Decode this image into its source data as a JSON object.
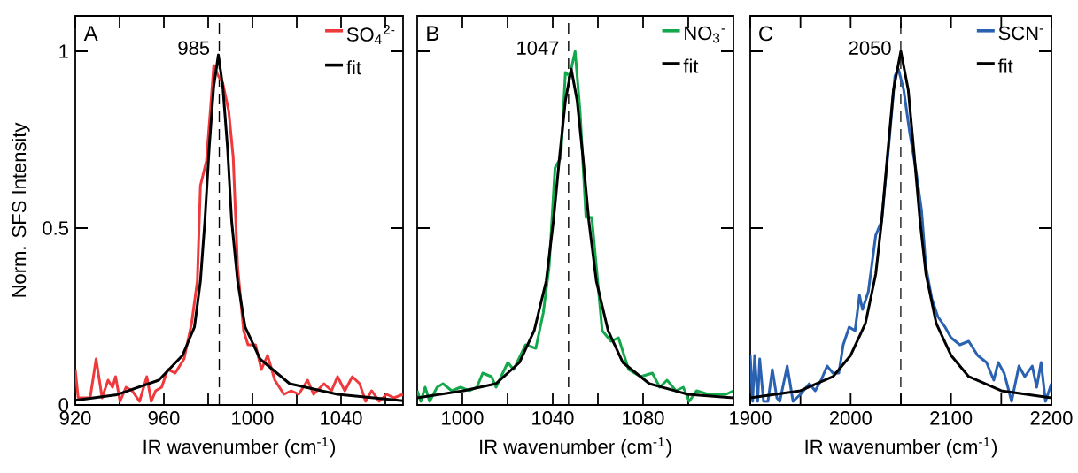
{
  "chart_data": [
    {
      "type": "line",
      "xlabel": "IR wavenumber (cm$^{-1}$)",
      "ylabel": "Norm. SFS Intensity",
      "xlim": [
        920,
        1068
      ],
      "ylim": [
        0,
        1.1
      ],
      "xticks": [
        920,
        {
          "value": 940,
          "label": null
        },
        960,
        {
          "value": 980,
          "label": null
        },
        1000,
        {
          "value": 1020,
          "label": null
        },
        1040,
        {
          "value": 1060,
          "label": null
        }
      ],
      "yticks": [
        0,
        0.5,
        1
      ],
      "legend": "top right",
      "marker": "none",
      "annotations": [
        "A"
      ],
      "ref_lines": [
        {
          "axis": "x",
          "value": 985,
          "label": "985",
          "line_style": "dashed",
          "color": "#000000"
        }
      ],
      "series": [
        {
          "name": "SO$_{4}$$^{2-}$",
          "color": "#ee3a3d",
          "x": [
            920,
            921.3,
            923.4,
            926.7,
            929.4,
            932.1,
            934.8,
            936.8,
            938.2,
            940.2,
            942.9,
            945.6,
            949,
            952.3,
            954.3,
            956.3,
            959,
            961.7,
            965.1,
            969.1,
            972.5,
            975.1,
            976.5,
            979.2,
            981.2,
            982.5,
            984.6,
            986.6,
            989.3,
            991.3,
            993.3,
            996,
            998,
            1001.4,
            1004,
            1006.8,
            1010.1,
            1014.2,
            1017.5,
            1020.9,
            1024.9,
            1027.6,
            1032.3,
            1035.7,
            1038.4,
            1041.7,
            1045.1,
            1048.4,
            1051.1,
            1053.8,
            1057.2,
            1060.6,
            1063.9,
            1068
          ],
          "values": [
            0.1,
            0.02,
            0.02,
            0.02,
            0.13,
            0.02,
            0.07,
            0.05,
            0.08,
            0.01,
            0.05,
            0.04,
            0.01,
            0.08,
            0.01,
            0.04,
            0.05,
            0.1,
            0.09,
            0.13,
            0.23,
            0.35,
            0.62,
            0.69,
            0.85,
            0.96,
            0.93,
            0.91,
            0.83,
            0.7,
            0.39,
            0.21,
            0.17,
            0.17,
            0.1,
            0.14,
            0.07,
            0.03,
            0.04,
            0.03,
            0.07,
            0.03,
            0.06,
            0.04,
            0.08,
            0.04,
            0.08,
            0.06,
            0.01,
            0.04,
            0.01,
            0.03,
            0.02,
            0.03
          ]
        },
        {
          "name": "fit",
          "color": "#000000",
          "x": [
            920,
            938.8,
            957.7,
            968.4,
            973.8,
            976.5,
            978.5,
            980.5,
            982.5,
            984.6,
            986.6,
            988.7,
            990.6,
            993.3,
            996.7,
            1003.4,
            1016.8,
            1038.4,
            1068
          ],
          "values": [
            0.013,
            0.029,
            0.07,
            0.14,
            0.22,
            0.35,
            0.52,
            0.73,
            0.9,
            0.99,
            0.9,
            0.73,
            0.52,
            0.35,
            0.22,
            0.13,
            0.06,
            0.03,
            0.012
          ]
        }
      ]
    },
    {
      "type": "line",
      "xlabel": "IR wavenumber (cm$^{-1}$)",
      "xlim": [
        980,
        1120
      ],
      "ylim": [
        0,
        1.1
      ],
      "xticks": [
        1000,
        {
          "value": 1020,
          "label": null
        },
        1040,
        {
          "value": 1060,
          "label": null
        },
        1080,
        {
          "value": 1100,
          "label": null
        }
      ],
      "yticks": [
        0,
        0.5,
        1
      ],
      "tick_labels": "x",
      "legend": "top right",
      "marker": "none",
      "annotations": [
        "B"
      ],
      "ref_lines": [
        {
          "axis": "x",
          "value": 1047,
          "label": "1047",
          "line_style": "dashed",
          "color": "#000000"
        }
      ],
      "series": [
        {
          "name": "NO$_{3}$$^{-}$",
          "color": "#13a84b",
          "x": [
            980,
            981.6,
            983.5,
            985.5,
            988.8,
            991.4,
            995.3,
            999.2,
            1003.1,
            1006.4,
            1009,
            1012.9,
            1014.9,
            1020.1,
            1022.7,
            1028,
            1032.5,
            1035.8,
            1038.4,
            1041,
            1043.6,
            1045.6,
            1047.5,
            1049.9,
            1052.1,
            1054.7,
            1057.3,
            1061.9,
            1065.8,
            1069.1,
            1073.6,
            1078.9,
            1084.1,
            1087.4,
            1090.6,
            1094.5,
            1097.8,
            1100.4,
            1103.7,
            1108.9,
            1114.2,
            1116.7,
            1120
          ],
          "values": [
            0.04,
            0.01,
            0.05,
            0.01,
            0.05,
            0.06,
            0.04,
            0.05,
            0.04,
            0.05,
            0.09,
            0.08,
            0.05,
            0.12,
            0.1,
            0.17,
            0.16,
            0.26,
            0.39,
            0.67,
            0.7,
            0.94,
            0.93,
            1.0,
            0.83,
            0.53,
            0.53,
            0.21,
            0.18,
            0.19,
            0.1,
            0.08,
            0.09,
            0.05,
            0.07,
            0.04,
            0.05,
            0.01,
            0.04,
            0.03,
            0.03,
            0.03,
            0.04
          ]
        },
        {
          "name": "fit",
          "color": "#000000",
          "x": [
            980,
            1000.5,
            1014.9,
            1025.3,
            1031.8,
            1037.1,
            1040.3,
            1043,
            1045.6,
            1048.2,
            1050.8,
            1053.4,
            1056,
            1059.3,
            1064.5,
            1071,
            1082.8,
            1099.8,
            1120
          ],
          "values": [
            0.02,
            0.04,
            0.06,
            0.12,
            0.21,
            0.35,
            0.52,
            0.7,
            0.86,
            0.95,
            0.86,
            0.7,
            0.52,
            0.35,
            0.21,
            0.12,
            0.06,
            0.03,
            0.02
          ]
        }
      ]
    },
    {
      "type": "line",
      "xlabel": "IR wavenumber (cm$^{-1}$)",
      "xlim": [
        1900,
        2200
      ],
      "ylim": [
        0,
        1.1
      ],
      "xticks": [
        1900,
        {
          "value": 1950,
          "label": null
        },
        2000,
        {
          "value": 2050,
          "label": null
        },
        2100,
        {
          "value": 2150,
          "label": null
        },
        2200
      ],
      "yticks": [
        0,
        0.5,
        1
      ],
      "tick_labels": "x",
      "legend": "top right",
      "marker": "none",
      "annotations": [
        "C"
      ],
      "ref_lines": [
        {
          "axis": "x",
          "value": 2050,
          "label": "2050",
          "line_style": "dashed",
          "color": "#000000"
        }
      ],
      "series": [
        {
          "name": "SCN$^{-}$",
          "color": "#2a61b0",
          "x": [
            1900,
            1902.4,
            1904.4,
            1907.4,
            1909.4,
            1913.2,
            1917.6,
            1922,
            1926.5,
            1929.4,
            1936.8,
            1942.6,
            1950,
            1958.8,
            1964.7,
            1970.6,
            1976.5,
            1982.4,
            1988.2,
            1992.6,
            1998.5,
            2004.4,
            2008.8,
            2011.8,
            2017.6,
            2025,
            2030.9,
            2038.2,
            2044.1,
            2047.6,
            2052.9,
            2058.8,
            2064.7,
            2070.6,
            2075,
            2080.9,
            2086.8,
            2094.1,
            2100,
            2108.8,
            2117.6,
            2126.5,
            2135.3,
            2142.6,
            2147,
            2152.9,
            2160.3,
            2167.6,
            2173.5,
            2180.9,
            2185.3,
            2189.7,
            2194.1,
            2200
          ],
          "values": [
            0.14,
            0.01,
            0.14,
            0.01,
            0.13,
            0.01,
            0.01,
            0.1,
            0.02,
            0.01,
            0.11,
            0.01,
            0.03,
            0.06,
            0.04,
            0.07,
            0.11,
            0.09,
            0.09,
            0.17,
            0.22,
            0.21,
            0.31,
            0.27,
            0.32,
            0.48,
            0.52,
            0.74,
            0.93,
            0.95,
            0.89,
            0.77,
            0.67,
            0.55,
            0.39,
            0.3,
            0.25,
            0.22,
            0.19,
            0.17,
            0.18,
            0.14,
            0.12,
            0.07,
            0.12,
            0.09,
            0.01,
            0.11,
            0.08,
            0.11,
            0.05,
            0.12,
            0.01,
            0.06
          ]
        },
        {
          "name": "fit",
          "color": "#000000",
          "x": [
            1900,
            1950,
            1982.4,
            2000,
            2014.7,
            2025,
            2030.9,
            2036.8,
            2042.6,
            2050,
            2057.4,
            2063.2,
            2069.1,
            2075,
            2085.3,
            2100,
            2117.6,
            2150,
            2200
          ],
          "values": [
            0.02,
            0.04,
            0.08,
            0.14,
            0.23,
            0.37,
            0.52,
            0.71,
            0.89,
            1.0,
            0.89,
            0.71,
            0.52,
            0.37,
            0.23,
            0.14,
            0.08,
            0.04,
            0.02
          ]
        }
      ]
    }
  ]
}
